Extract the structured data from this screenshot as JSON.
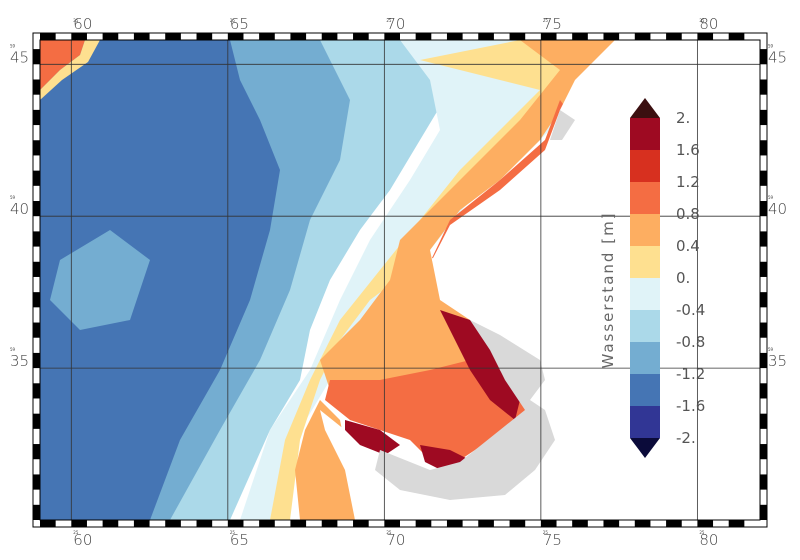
{
  "map": {
    "x_ticks": [
      "60",
      "65",
      "70",
      "75",
      "80"
    ],
    "y_ticks": [
      "45",
      "40",
      "35"
    ],
    "x_minor_label": "25",
    "y_minor_label": "59",
    "x_range": [
      59,
      82
    ],
    "y_range": [
      30,
      45.8
    ],
    "land_color": "#ffffff",
    "coast_halo_color": "#d9d9d9"
  },
  "colorbar": {
    "title": "Wasserstand [m]",
    "labels": [
      "2.",
      "1.6",
      "1.2",
      "0.8",
      "0.4",
      "0.",
      "-0.4",
      "-0.8",
      "-1.2",
      "-1.6",
      "-2."
    ],
    "colors": [
      "#3b0f10",
      "#9e0a22",
      "#d7301f",
      "#f46d43",
      "#fdae61",
      "#fee090",
      "#e0f3f8",
      "#abd9e9",
      "#74add1",
      "#4575b4",
      "#313695",
      "#0b0b3a"
    ]
  }
}
